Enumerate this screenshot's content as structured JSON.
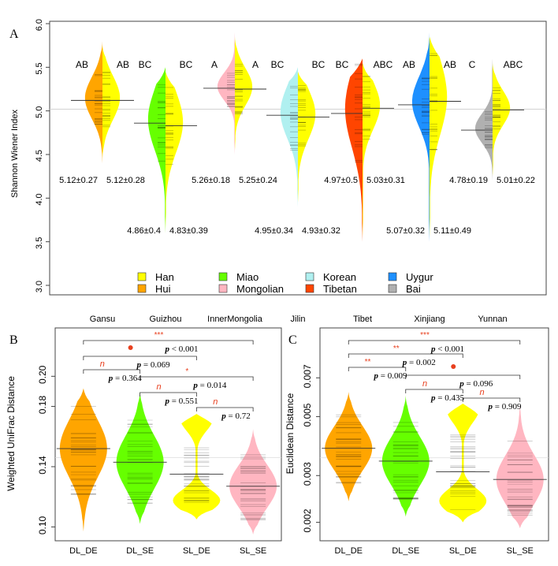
{
  "chart_data": [
    {
      "panel": "A",
      "type": "beanplot",
      "ylabel": "Shannon Wiener Index",
      "ylim": [
        3.0,
        6.0
      ],
      "yticks": [
        "3.0",
        "3.5",
        "4.0",
        "4.5",
        "5.0",
        "5.5",
        "6.0"
      ],
      "overall_mean": 5.02,
      "categories": [
        "Gansu",
        "Guizhou",
        "InnerMongolia",
        "Jilin",
        "Tibet",
        "Xinjiang",
        "Yunnan"
      ],
      "groups": [
        {
          "category": "Gansu",
          "left": {
            "ethnicity": "Hui",
            "mean": 5.12,
            "sd": 0.27,
            "label": "5.12±0.27",
            "letter": "AB"
          },
          "right": {
            "ethnicity": "Han",
            "mean": 5.12,
            "sd": 0.28,
            "label": "5.12±0.28",
            "letter": "AB"
          },
          "range": [
            4.4,
            5.8
          ]
        },
        {
          "category": "Guizhou",
          "left": {
            "ethnicity": "Miao",
            "mean": 4.86,
            "sd": 0.4,
            "label": "4.86±0.4",
            "letter": "BC"
          },
          "right": {
            "ethnicity": "Han",
            "mean": 4.83,
            "sd": 0.39,
            "label": "4.83±0.39",
            "letter": "BC"
          },
          "range": [
            3.6,
            5.5
          ]
        },
        {
          "category": "InnerMongolia",
          "left": {
            "ethnicity": "Mongolian",
            "mean": 5.26,
            "sd": 0.18,
            "label": "5.26±0.18",
            "letter": "A"
          },
          "right": {
            "ethnicity": "Han",
            "mean": 5.25,
            "sd": 0.24,
            "label": "5.25±0.24",
            "letter": "A"
          },
          "range": [
            4.5,
            5.9
          ]
        },
        {
          "category": "Jilin",
          "left": {
            "ethnicity": "Korean",
            "mean": 4.95,
            "sd": 0.34,
            "label": "4.95±0.34",
            "letter": "BC"
          },
          "right": {
            "ethnicity": "Han",
            "mean": 4.93,
            "sd": 0.32,
            "label": "4.93±0.32",
            "letter": "BC"
          },
          "range": [
            3.9,
            5.5
          ]
        },
        {
          "category": "Tibet",
          "left": {
            "ethnicity": "Tibetan",
            "mean": 4.97,
            "sd": 0.5,
            "label": "4.97±0.5",
            "letter": "BC"
          },
          "right": {
            "ethnicity": "Han",
            "mean": 5.03,
            "sd": 0.31,
            "label": "5.03±0.31",
            "letter": "ABC"
          },
          "range": [
            3.5,
            5.6
          ]
        },
        {
          "category": "Xinjiang",
          "left": {
            "ethnicity": "Uygur",
            "mean": 5.07,
            "sd": 0.32,
            "label": "5.07±0.32",
            "letter": "AB"
          },
          "right": {
            "ethnicity": "Han",
            "mean": 5.11,
            "sd": 0.49,
            "label": "5.11±0.49",
            "letter": "AB"
          },
          "range": [
            3.5,
            5.9
          ]
        },
        {
          "category": "Yunnan",
          "left": {
            "ethnicity": "Bai",
            "mean": 4.78,
            "sd": 0.19,
            "label": "4.78±0.19",
            "letter": "C"
          },
          "right": {
            "ethnicity": "Han",
            "mean": 5.01,
            "sd": 0.22,
            "label": "5.01±0.22",
            "letter": "ABC"
          },
          "range": [
            4.2,
            5.6
          ]
        }
      ],
      "legend": [
        {
          "name": "Han",
          "color": "#FFFF00"
        },
        {
          "name": "Hui",
          "color": "#FFA500"
        },
        {
          "name": "Miao",
          "color": "#66FF00"
        },
        {
          "name": "Mongolian",
          "color": "#FFB6C1"
        },
        {
          "name": "Korean",
          "color": "#B0F0F0"
        },
        {
          "name": "Tibetan",
          "color": "#FF4500"
        },
        {
          "name": "Uygur",
          "color": "#1E90FF"
        },
        {
          "name": "Bai",
          "color": "#B0B0B0"
        }
      ]
    },
    {
      "panel": "B",
      "type": "beanplot",
      "ylabel": "Weighted UniFrac Distance",
      "ylim": [
        0.095,
        0.23
      ],
      "yticks": [
        "0.10",
        "0.14",
        "0.18",
        "0.20"
      ],
      "overall_mean": 0.146,
      "categories": [
        "DL_DE",
        "DL_SE",
        "SL_DE",
        "SL_SE"
      ],
      "series": [
        {
          "name": "DL_DE",
          "color": "#FFA500",
          "mean": 0.152,
          "range": [
            0.097,
            0.192
          ]
        },
        {
          "name": "DL_SE",
          "color": "#66FF00",
          "mean": 0.143,
          "range": [
            0.102,
            0.19
          ]
        },
        {
          "name": "SL_DE",
          "color": "#FFFF00",
          "mean": 0.135,
          "range": [
            0.105,
            0.175
          ]
        },
        {
          "name": "SL_SE",
          "color": "#FFB6C1",
          "mean": 0.127,
          "range": [
            0.095,
            0.165
          ]
        }
      ],
      "comparisons": [
        {
          "from": "DL_DE",
          "to": "SL_SE",
          "sig": "***",
          "p": "< 0.001"
        },
        {
          "from": "DL_DE",
          "to": "SL_DE",
          "sig": "•",
          "p": "= 0.069"
        },
        {
          "from": "DL_DE",
          "to": "DL_SE",
          "sig": "n",
          "p": "= 0.364"
        },
        {
          "from": "DL_SE",
          "to": "SL_SE",
          "sig": "*",
          "p": "= 0.014"
        },
        {
          "from": "DL_SE",
          "to": "SL_DE",
          "sig": "n",
          "p": "= 0.551"
        },
        {
          "from": "SL_DE",
          "to": "SL_SE",
          "sig": "n",
          "p": "= 0.72"
        }
      ]
    },
    {
      "panel": "C",
      "type": "beanplot",
      "ylabel": "Euclidean Distance",
      "yscale": "log",
      "ylim": [
        0.0018,
        0.0105
      ],
      "yticks": [
        "0.002",
        "0.003",
        "0.005",
        "0.007"
      ],
      "overall_mean": 0.0035,
      "categories": [
        "DL_DE",
        "DL_SE",
        "SL_DE",
        "SL_SE"
      ],
      "series": [
        {
          "name": "DL_DE",
          "color": "#FFA500",
          "mean": 0.0038,
          "range": [
            0.0024,
            0.0062
          ]
        },
        {
          "name": "DL_SE",
          "color": "#66FF00",
          "mean": 0.0034,
          "range": [
            0.0021,
            0.006
          ]
        },
        {
          "name": "SL_DE",
          "color": "#FFFF00",
          "mean": 0.0031,
          "range": [
            0.002,
            0.0056
          ]
        },
        {
          "name": "SL_SE",
          "color": "#FFB6C1",
          "mean": 0.0029,
          "range": [
            0.0019,
            0.0055
          ]
        }
      ],
      "comparisons": [
        {
          "from": "DL_DE",
          "to": "SL_SE",
          "sig": "***",
          "p": "< 0.001"
        },
        {
          "from": "DL_DE",
          "to": "SL_DE",
          "sig": "**",
          "p": "= 0.002"
        },
        {
          "from": "DL_DE",
          "to": "DL_SE",
          "sig": "**",
          "p": "= 0.009"
        },
        {
          "from": "DL_SE",
          "to": "SL_SE",
          "sig": "•",
          "p": "= 0.096"
        },
        {
          "from": "DL_SE",
          "to": "SL_DE",
          "sig": "n",
          "p": "= 0.435"
        },
        {
          "from": "SL_DE",
          "to": "SL_SE",
          "sig": "n",
          "p": "= 0.909"
        }
      ]
    }
  ]
}
